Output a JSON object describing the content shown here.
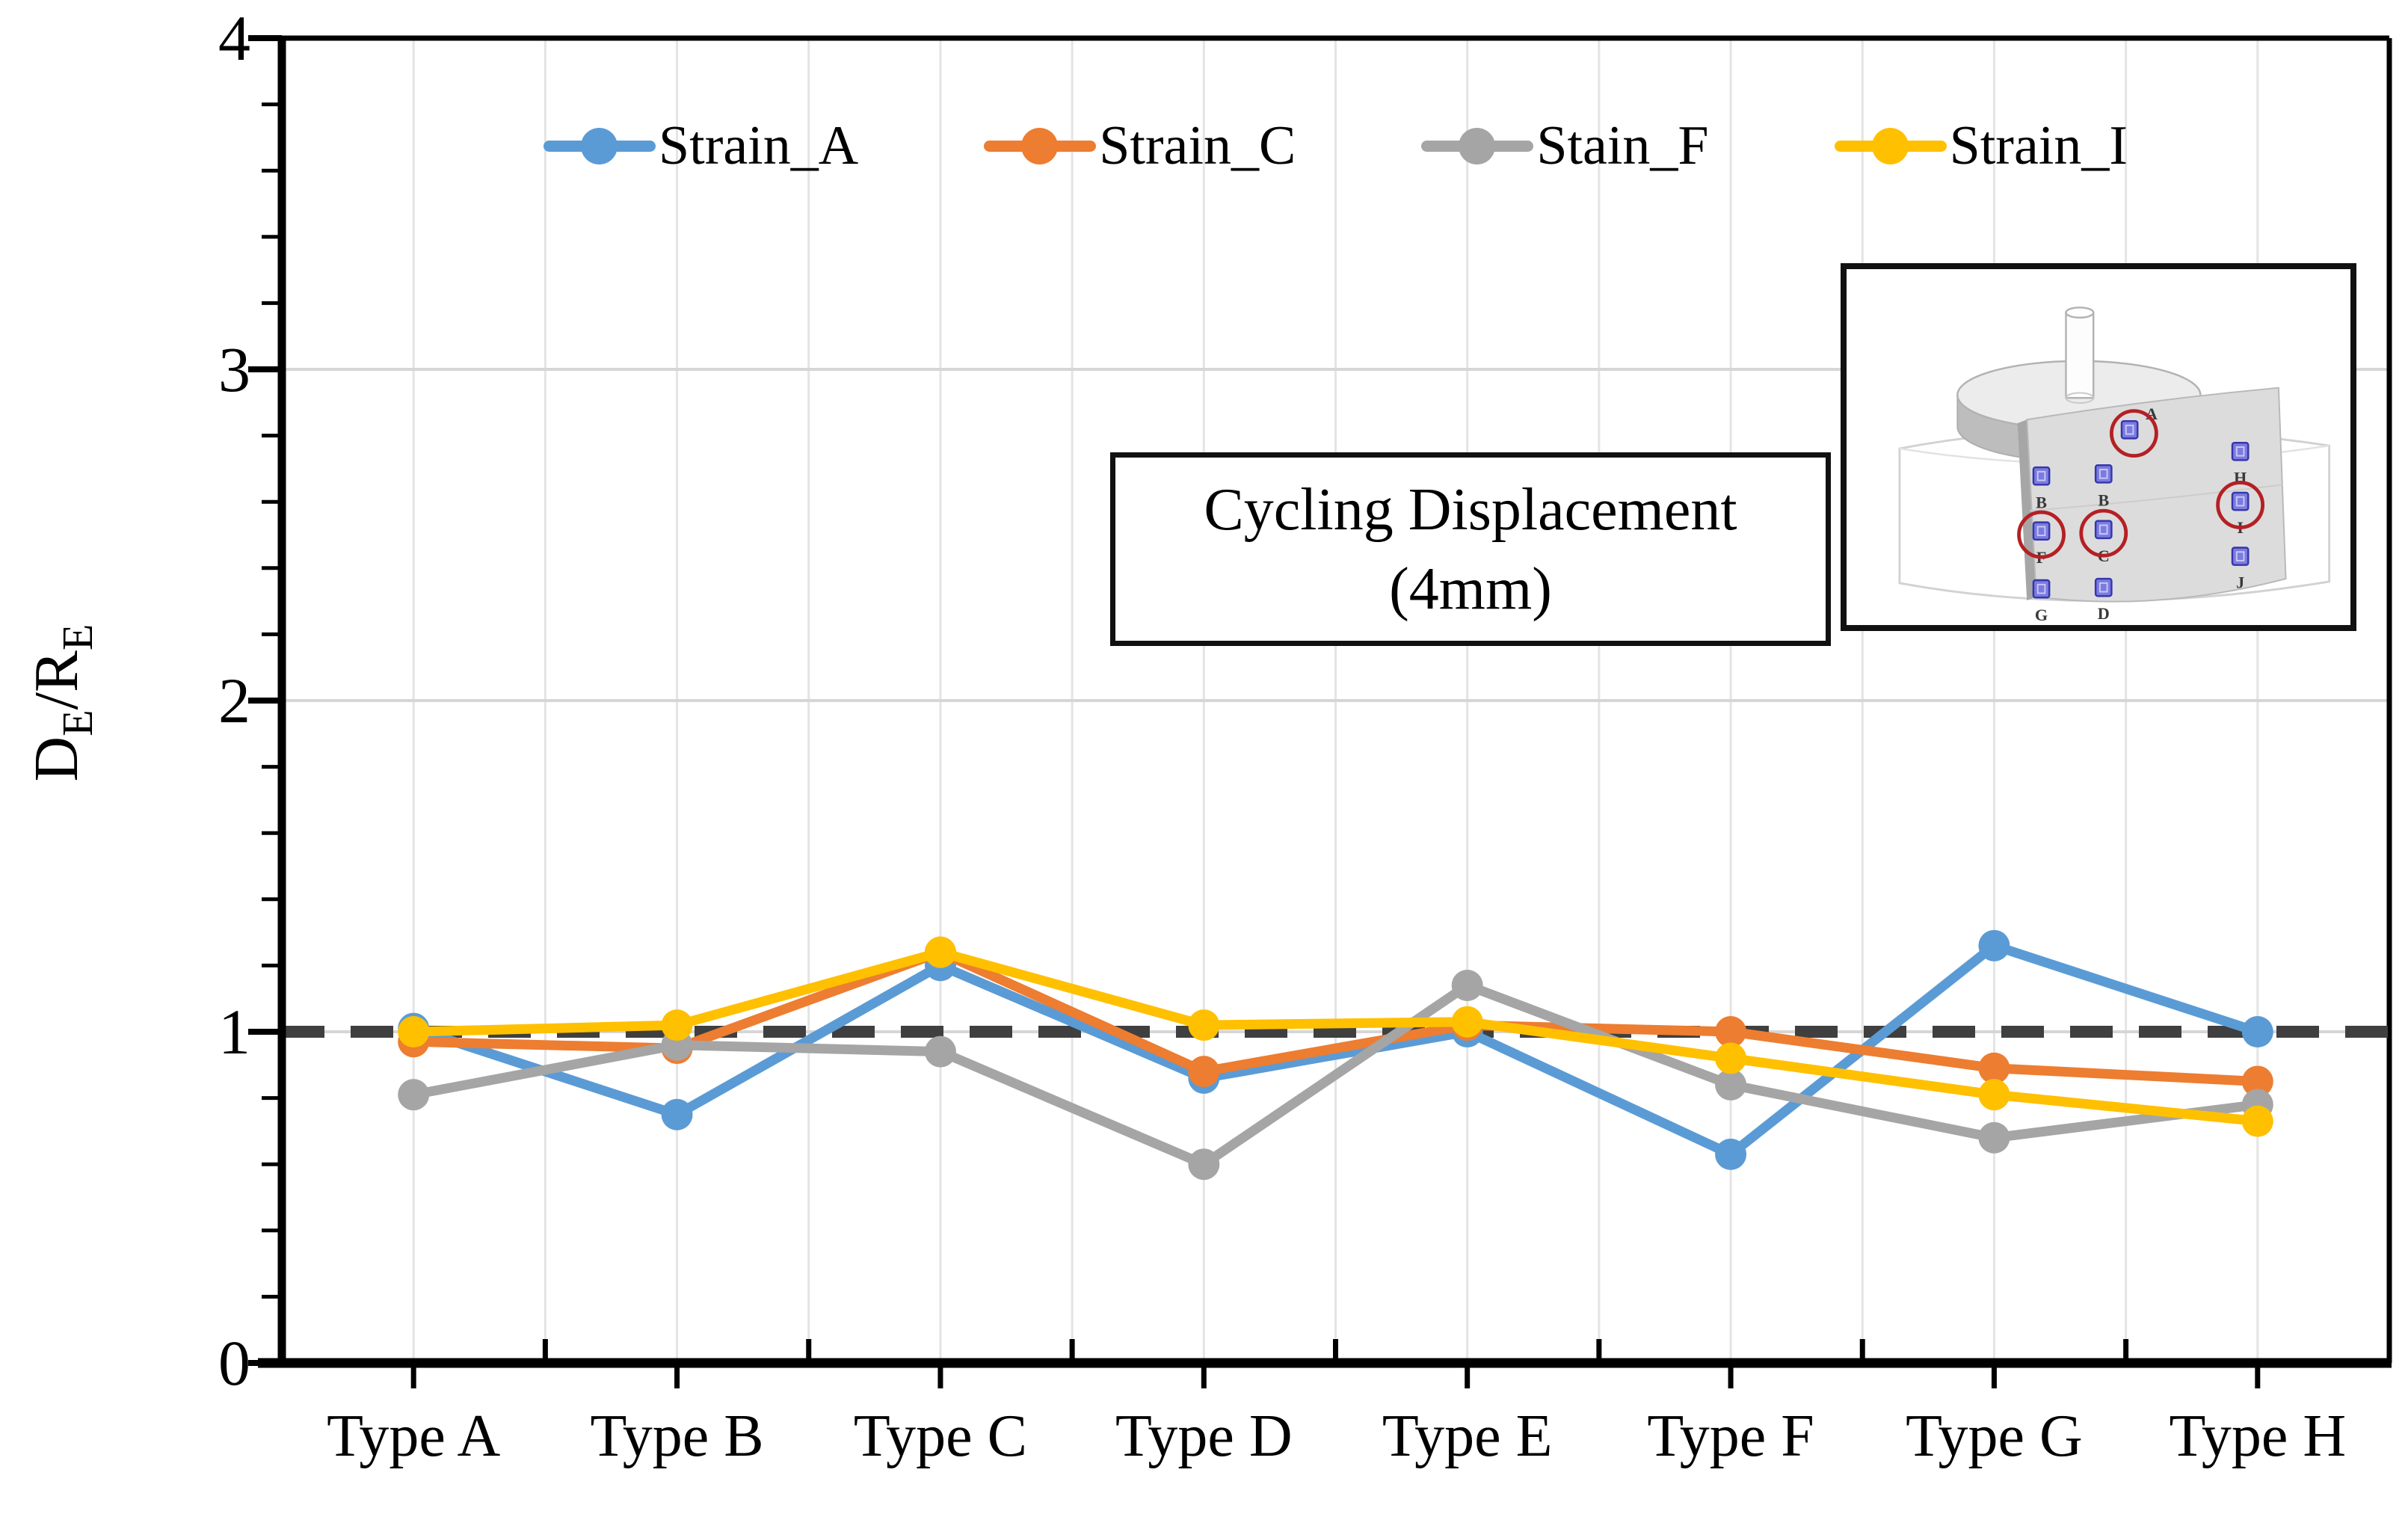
{
  "chart_data": {
    "type": "line",
    "title": "",
    "categories": [
      "Type A",
      "Type B",
      "Type C",
      "Type D",
      "Type E",
      "Type F",
      "Type G",
      "Type H"
    ],
    "series": [
      {
        "name": "Strain_A",
        "color": "#5B9BD5",
        "values": [
          1.01,
          0.75,
          1.2,
          0.86,
          1.0,
          0.63,
          1.26,
          1.0
        ]
      },
      {
        "name": "Strain_C",
        "color": "#ED7D31",
        "values": [
          0.97,
          0.95,
          1.24,
          0.88,
          1.02,
          1.0,
          0.89,
          0.85
        ]
      },
      {
        "name": "Stain_F",
        "color": "#A5A5A5",
        "values": [
          0.81,
          0.96,
          0.94,
          0.6,
          1.14,
          0.84,
          0.68,
          0.78
        ]
      },
      {
        "name": "Strain_I",
        "color": "#FFC000",
        "values": [
          1.0,
          1.02,
          1.24,
          1.02,
          1.03,
          0.92,
          0.81,
          0.73
        ]
      }
    ],
    "xlabel": "",
    "ylabel": "DE/RE",
    "ylim": [
      0,
      4
    ],
    "y_major_ticks": [
      0,
      1,
      2,
      3,
      4
    ],
    "y_minor_step": 0.2,
    "reference_line": {
      "value": 1,
      "style": "dashed",
      "color": "#3F3F3F"
    },
    "grid": {
      "vertical": true,
      "horizontal": true
    },
    "legend_position": "top"
  },
  "y_axis_title": {
    "main1": "D",
    "sub1": "E",
    "main2": "/R",
    "sub2": "E"
  },
  "annotation": {
    "line1": "Cycling Displacement",
    "line2": "(4mm)"
  },
  "inset": {
    "markers": [
      {
        "label": "A",
        "circled": true
      },
      {
        "label": "B",
        "circled": false
      },
      {
        "label": "B",
        "circled": false
      },
      {
        "label": "H",
        "circled": false
      },
      {
        "label": "F",
        "circled": true
      },
      {
        "label": "C",
        "circled": true
      },
      {
        "label": "I",
        "circled": true
      },
      {
        "label": "G",
        "circled": false
      },
      {
        "label": "D",
        "circled": false
      },
      {
        "label": "J",
        "circled": false
      }
    ]
  },
  "colors": {
    "axis": "#000000",
    "grid_vertical": "#E4E4E4",
    "grid_horizontal": "#D6D6D6",
    "inset_red_circle": "#B42025",
    "inset_square": "#7B7BDF"
  }
}
